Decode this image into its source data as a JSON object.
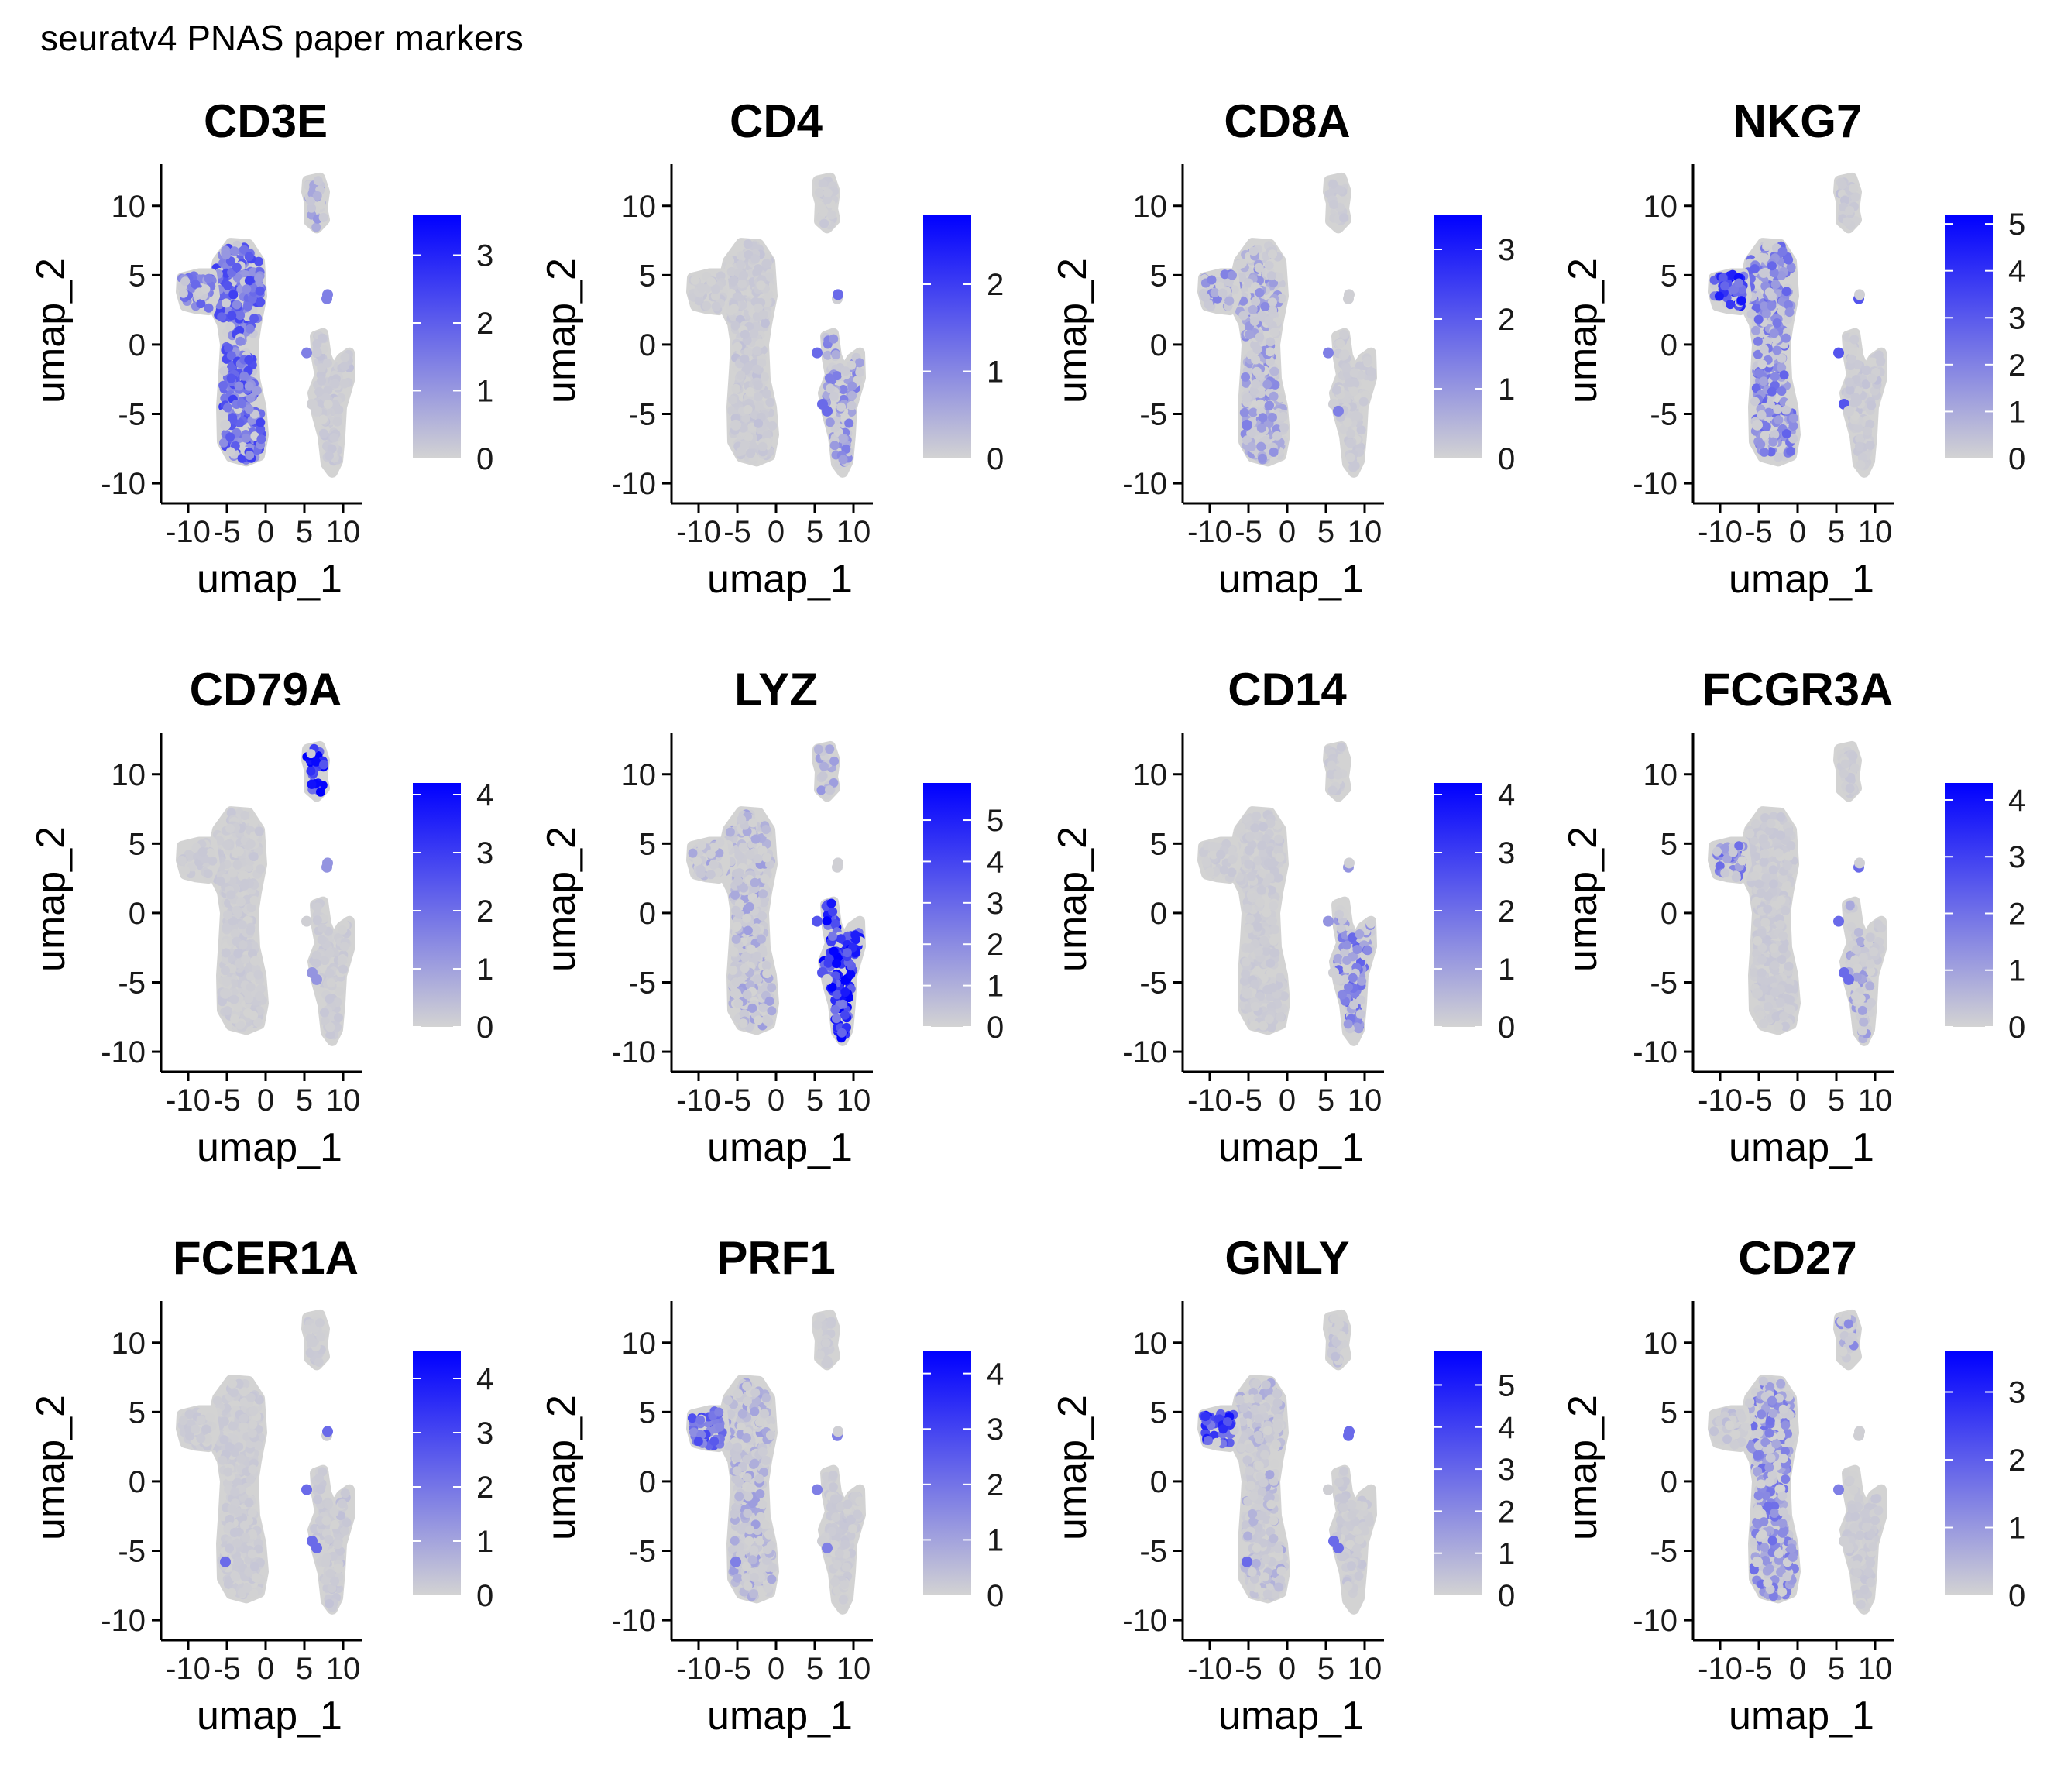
{
  "figure": {
    "title": "seuratv4 PNAS paper markers"
  },
  "colors": {
    "low": "#d3d3d3",
    "high": "#0000ff",
    "axis": "#000000"
  },
  "chart_data": [
    {
      "type": "scatter",
      "title": "CD3E",
      "xlabel": "umap_1",
      "ylabel": "umap_2",
      "x_ticks": [
        -10,
        -5,
        0,
        5,
        10
      ],
      "y_ticks": [
        -10,
        -5,
        0,
        5,
        10
      ],
      "xlim": [
        -12.5,
        12.5
      ],
      "ylim": [
        -11,
        13
      ],
      "legend": {
        "ticks": [
          0,
          1,
          2,
          3
        ],
        "max": 3.6
      },
      "expression": {
        "left_cluster": 0.6,
        "left_tip": 0.45,
        "top_island": 0.25,
        "right_cluster": 0.08,
        "small_dots": 0.4
      }
    },
    {
      "type": "scatter",
      "title": "CD4",
      "xlabel": "umap_1",
      "ylabel": "umap_2",
      "x_ticks": [
        -10,
        -5,
        0,
        5,
        10
      ],
      "y_ticks": [
        -10,
        -5,
        0,
        5,
        10
      ],
      "xlim": [
        -12.5,
        12.5
      ],
      "ylim": [
        -11,
        13
      ],
      "legend": {
        "ticks": [
          0,
          1,
          2
        ],
        "max": 2.8
      },
      "expression": {
        "left_cluster": 0.08,
        "left_tip": 0.05,
        "top_island": 0.03,
        "right_cluster": 0.35,
        "small_dots": 0.5
      }
    },
    {
      "type": "scatter",
      "title": "CD8A",
      "xlabel": "umap_1",
      "ylabel": "umap_2",
      "x_ticks": [
        -10,
        -5,
        0,
        5,
        10
      ],
      "y_ticks": [
        -10,
        -5,
        0,
        5,
        10
      ],
      "xlim": [
        -12.5,
        12.5
      ],
      "ylim": [
        -11,
        13
      ],
      "legend": {
        "ticks": [
          0,
          1,
          2,
          3
        ],
        "max": 3.5
      },
      "expression": {
        "left_cluster": 0.3,
        "left_tip": 0.35,
        "top_island": 0.05,
        "right_cluster": 0.05,
        "small_dots": 0.4
      }
    },
    {
      "type": "scatter",
      "title": "NKG7",
      "xlabel": "umap_1",
      "ylabel": "umap_2",
      "x_ticks": [
        -10,
        -5,
        0,
        5,
        10
      ],
      "y_ticks": [
        -10,
        -5,
        0,
        5,
        10
      ],
      "xlim": [
        -12.5,
        12.5
      ],
      "ylim": [
        -11,
        13
      ],
      "legend": {
        "ticks": [
          0,
          1,
          2,
          3,
          4,
          5
        ],
        "max": 5.2
      },
      "expression": {
        "left_cluster": 0.45,
        "left_tip": 0.85,
        "top_island": 0.1,
        "right_cluster": 0.1,
        "small_dots": 0.6
      }
    },
    {
      "type": "scatter",
      "title": "CD79A",
      "xlabel": "umap_1",
      "ylabel": "umap_2",
      "x_ticks": [
        -10,
        -5,
        0,
        5,
        10
      ],
      "y_ticks": [
        -10,
        -5,
        0,
        5,
        10
      ],
      "xlim": [
        -12.5,
        12.5
      ],
      "ylim": [
        -11,
        13
      ],
      "legend": {
        "ticks": [
          0,
          1,
          2,
          3,
          4
        ],
        "max": 4.2
      },
      "expression": {
        "left_cluster": 0.03,
        "left_tip": 0.05,
        "top_island": 0.9,
        "right_cluster": 0.03,
        "small_dots": 0.3
      }
    },
    {
      "type": "scatter",
      "title": "LYZ",
      "xlabel": "umap_1",
      "ylabel": "umap_2",
      "x_ticks": [
        -10,
        -5,
        0,
        5,
        10
      ],
      "y_ticks": [
        -10,
        -5,
        0,
        5,
        10
      ],
      "xlim": [
        -12.5,
        12.5
      ],
      "ylim": [
        -11,
        13
      ],
      "legend": {
        "ticks": [
          0,
          1,
          2,
          3,
          4,
          5
        ],
        "max": 5.9
      },
      "expression": {
        "left_cluster": 0.22,
        "left_tip": 0.22,
        "top_island": 0.25,
        "right_cluster": 0.9,
        "small_dots": 0.6
      }
    },
    {
      "type": "scatter",
      "title": "CD14",
      "xlabel": "umap_1",
      "ylabel": "umap_2",
      "x_ticks": [
        -10,
        -5,
        0,
        5,
        10
      ],
      "y_ticks": [
        -10,
        -5,
        0,
        5,
        10
      ],
      "xlim": [
        -12.5,
        12.5
      ],
      "ylim": [
        -11,
        13
      ],
      "legend": {
        "ticks": [
          0,
          1,
          2,
          3,
          4
        ],
        "max": 4.2
      },
      "expression": {
        "left_cluster": 0.03,
        "left_tip": 0.03,
        "top_island": 0.03,
        "right_cluster": 0.45,
        "small_dots": 0.3
      }
    },
    {
      "type": "scatter",
      "title": "FCGR3A",
      "xlabel": "umap_1",
      "ylabel": "umap_2",
      "x_ticks": [
        -10,
        -5,
        0,
        5,
        10
      ],
      "y_ticks": [
        -10,
        -5,
        0,
        5,
        10
      ],
      "xlim": [
        -12.5,
        12.5
      ],
      "ylim": [
        -11,
        13
      ],
      "legend": {
        "ticks": [
          0,
          1,
          2,
          3,
          4
        ],
        "max": 4.3
      },
      "expression": {
        "left_cluster": 0.06,
        "left_tip": 0.45,
        "top_island": 0.03,
        "right_cluster": 0.25,
        "small_dots": 0.5
      }
    },
    {
      "type": "scatter",
      "title": "FCER1A",
      "xlabel": "umap_1",
      "ylabel": "umap_2",
      "x_ticks": [
        -10,
        -5,
        0,
        5,
        10
      ],
      "y_ticks": [
        -10,
        -5,
        0,
        5,
        10
      ],
      "xlim": [
        -12.5,
        12.5
      ],
      "ylim": [
        -11,
        13
      ],
      "legend": {
        "ticks": [
          0,
          1,
          2,
          3,
          4
        ],
        "max": 4.5
      },
      "expression": {
        "left_cluster": 0.01,
        "left_tip": 0.01,
        "top_island": 0.02,
        "right_cluster": 0.1,
        "small_dots": 0.5
      }
    },
    {
      "type": "scatter",
      "title": "PRF1",
      "xlabel": "umap_1",
      "ylabel": "umap_2",
      "x_ticks": [
        -10,
        -5,
        0,
        5,
        10
      ],
      "y_ticks": [
        -10,
        -5,
        0,
        5,
        10
      ],
      "xlim": [
        -12.5,
        12.5
      ],
      "ylim": [
        -11,
        13
      ],
      "legend": {
        "ticks": [
          0,
          1,
          2,
          3,
          4
        ],
        "max": 4.4
      },
      "expression": {
        "left_cluster": 0.22,
        "left_tip": 0.6,
        "top_island": 0.05,
        "right_cluster": 0.06,
        "small_dots": 0.4
      }
    },
    {
      "type": "scatter",
      "title": "GNLY",
      "xlabel": "umap_1",
      "ylabel": "umap_2",
      "x_ticks": [
        -10,
        -5,
        0,
        5,
        10
      ],
      "y_ticks": [
        -10,
        -5,
        0,
        5,
        10
      ],
      "xlim": [
        -12.5,
        12.5
      ],
      "ylim": [
        -11,
        13
      ],
      "legend": {
        "ticks": [
          0,
          1,
          2,
          3,
          4,
          5
        ],
        "max": 5.8
      },
      "expression": {
        "left_cluster": 0.18,
        "left_tip": 0.8,
        "top_island": 0.1,
        "right_cluster": 0.08,
        "small_dots": 0.5
      }
    },
    {
      "type": "scatter",
      "title": "CD27",
      "xlabel": "umap_1",
      "ylabel": "umap_2",
      "x_ticks": [
        -10,
        -5,
        0,
        5,
        10
      ],
      "y_ticks": [
        -10,
        -5,
        0,
        5,
        10
      ],
      "xlim": [
        -12.5,
        12.5
      ],
      "ylim": [
        -11,
        13
      ],
      "legend": {
        "ticks": [
          0,
          1,
          2,
          3
        ],
        "max": 3.6
      },
      "expression": {
        "left_cluster": 0.4,
        "left_tip": 0.1,
        "top_island": 0.3,
        "right_cluster": 0.06,
        "small_dots": 0.4
      }
    }
  ]
}
